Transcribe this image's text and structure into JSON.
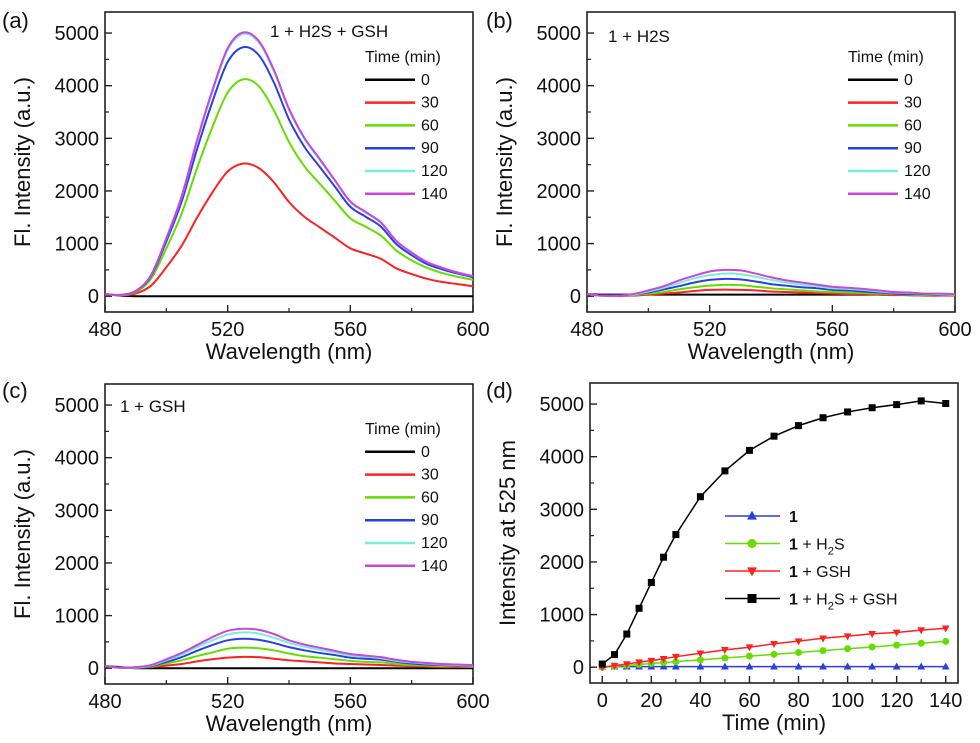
{
  "colors": {
    "0": "#000000",
    "30": "#ff2020",
    "60": "#66dd00",
    "90": "#2a3fe0",
    "120": "#77eedd",
    "140": "#cc44dd",
    "d_1": "#2a3fe0",
    "d_h2s": "#66dd00",
    "d_gsh": "#ff2020",
    "d_both": "#000000"
  },
  "chart_data": [
    {
      "panel": "(a)",
      "type": "line",
      "title": "1 + H2S + GSH",
      "xlabel": "Wavelength (nm)",
      "ylabel": "Fl. Intensity (a.u.)",
      "xlim": [
        480,
        600
      ],
      "ylim": [
        -300,
        5400
      ],
      "xticks": [
        480,
        520,
        560,
        600
      ],
      "yticks": [
        0,
        1000,
        2000,
        3000,
        4000,
        5000
      ],
      "legend_title": "Time (min)",
      "legend_position": "top-right",
      "grid": false,
      "x": [
        480,
        485,
        490,
        495,
        500,
        505,
        510,
        515,
        520,
        525,
        530,
        535,
        540,
        545,
        550,
        555,
        560,
        565,
        570,
        575,
        580,
        585,
        590,
        595,
        600
      ],
      "series": [
        {
          "name": "0",
          "values": [
            40,
            10,
            0,
            0,
            0,
            0,
            0,
            0,
            0,
            0,
            0,
            0,
            0,
            0,
            0,
            0,
            0,
            0,
            0,
            0,
            0,
            0,
            0,
            0,
            0
          ]
        },
        {
          "name": "30",
          "values": [
            40,
            15,
            50,
            200,
            550,
            960,
            1490,
            1970,
            2370,
            2520,
            2440,
            2170,
            1790,
            1510,
            1310,
            1110,
            910,
            810,
            710,
            530,
            420,
            330,
            270,
            230,
            190
          ]
        },
        {
          "name": "60",
          "values": [
            40,
            20,
            80,
            330,
            910,
            1570,
            2430,
            3210,
            3870,
            4120,
            4000,
            3540,
            2930,
            2470,
            2140,
            1810,
            1480,
            1320,
            1150,
            870,
            680,
            540,
            440,
            370,
            310
          ]
        },
        {
          "name": "90",
          "values": [
            40,
            24,
            95,
            380,
            1040,
            1800,
            2790,
            3690,
            4450,
            4730,
            4590,
            4070,
            3360,
            2840,
            2460,
            2080,
            1700,
            1510,
            1320,
            990,
            780,
            610,
            510,
            430,
            360
          ]
        },
        {
          "name": "120",
          "values": [
            40,
            25,
            100,
            400,
            1100,
            1890,
            2940,
            3880,
            4680,
            4980,
            4830,
            4280,
            3540,
            2990,
            2590,
            2190,
            1790,
            1590,
            1390,
            1050,
            820,
            650,
            540,
            450,
            380
          ]
        },
        {
          "name": "140",
          "values": [
            40,
            25,
            100,
            400,
            1100,
            1900,
            2960,
            3910,
            4710,
            5010,
            4860,
            4310,
            3560,
            3010,
            2610,
            2200,
            1800,
            1600,
            1400,
            1050,
            830,
            650,
            540,
            450,
            380
          ]
        }
      ]
    },
    {
      "panel": "(b)",
      "type": "line",
      "title": "1 + H2S",
      "xlabel": "Wavelength (nm)",
      "ylabel": "Fl. Intensity (a.u.)",
      "xlim": [
        480,
        600
      ],
      "ylim": [
        -300,
        5400
      ],
      "xticks": [
        480,
        520,
        560,
        600
      ],
      "yticks": [
        0,
        1000,
        2000,
        3000,
        4000,
        5000
      ],
      "legend_title": "Time (min)",
      "legend_position": "top-right",
      "grid": false,
      "x": [
        480,
        485,
        490,
        495,
        500,
        505,
        510,
        515,
        520,
        525,
        530,
        535,
        540,
        545,
        550,
        555,
        560,
        565,
        570,
        575,
        580,
        585,
        590,
        595,
        600
      ],
      "series": [
        {
          "name": "0",
          "values": [
            40,
            30,
            30,
            30,
            30,
            30,
            30,
            30,
            30,
            30,
            30,
            30,
            30,
            30,
            30,
            30,
            30,
            30,
            30,
            30,
            30,
            20,
            20,
            20,
            20
          ]
        },
        {
          "name": "30",
          "values": [
            40,
            10,
            5,
            10,
            30,
            50,
            70,
            100,
            120,
            125,
            120,
            110,
            90,
            80,
            70,
            60,
            50,
            40,
            40,
            30,
            20,
            20,
            10,
            10,
            10
          ]
        },
        {
          "name": "60",
          "values": [
            40,
            10,
            10,
            20,
            50,
            80,
            130,
            170,
            200,
            215,
            210,
            180,
            150,
            130,
            110,
            90,
            80,
            70,
            60,
            50,
            40,
            30,
            20,
            20,
            20
          ]
        },
        {
          "name": "90",
          "values": [
            40,
            10,
            10,
            30,
            70,
            130,
            190,
            260,
            310,
            330,
            320,
            280,
            230,
            200,
            170,
            150,
            120,
            110,
            90,
            70,
            50,
            40,
            40,
            30,
            30
          ]
        },
        {
          "name": "120",
          "values": [
            40,
            10,
            10,
            30,
            90,
            160,
            250,
            340,
            400,
            430,
            420,
            370,
            310,
            260,
            220,
            190,
            150,
            140,
            120,
            90,
            70,
            60,
            50,
            40,
            30
          ]
        },
        {
          "name": "140",
          "values": [
            40,
            10,
            10,
            40,
            110,
            190,
            300,
            390,
            470,
            500,
            490,
            430,
            360,
            300,
            260,
            220,
            180,
            160,
            140,
            110,
            80,
            70,
            50,
            50,
            40
          ]
        }
      ]
    },
    {
      "panel": "(c)",
      "type": "line",
      "title": "1 + GSH",
      "xlabel": "Wavelength (nm)",
      "ylabel": "Fl. Intensity (a.u.)",
      "xlim": [
        480,
        600
      ],
      "ylim": [
        -300,
        5400
      ],
      "xticks": [
        480,
        520,
        560,
        600
      ],
      "yticks": [
        0,
        1000,
        2000,
        3000,
        4000,
        5000
      ],
      "legend_title": "Time (min)",
      "legend_position": "top-right",
      "grid": false,
      "x": [
        480,
        485,
        490,
        495,
        500,
        505,
        510,
        515,
        520,
        525,
        530,
        535,
        540,
        545,
        550,
        555,
        560,
        565,
        570,
        575,
        580,
        585,
        590,
        595,
        600
      ],
      "series": [
        {
          "name": "0",
          "values": [
            40,
            20,
            0,
            0,
            0,
            0,
            0,
            0,
            0,
            0,
            0,
            0,
            0,
            0,
            0,
            0,
            0,
            0,
            0,
            0,
            0,
            0,
            0,
            0,
            0
          ]
        },
        {
          "name": "30",
          "values": [
            40,
            10,
            5,
            20,
            50,
            80,
            130,
            170,
            200,
            215,
            210,
            180,
            150,
            130,
            110,
            90,
            80,
            70,
            60,
            50,
            40,
            30,
            20,
            20,
            20
          ]
        },
        {
          "name": "60",
          "values": [
            40,
            10,
            10,
            30,
            90,
            150,
            230,
            300,
            370,
            390,
            380,
            340,
            280,
            230,
            200,
            170,
            140,
            120,
            110,
            80,
            60,
            50,
            40,
            40,
            30
          ]
        },
        {
          "name": "90",
          "values": [
            40,
            10,
            10,
            40,
            120,
            210,
            330,
            440,
            530,
            560,
            540,
            480,
            400,
            340,
            290,
            250,
            200,
            180,
            160,
            120,
            90,
            70,
            60,
            50,
            40
          ]
        },
        {
          "name": "120",
          "values": [
            40,
            10,
            10,
            50,
            150,
            260,
            400,
            530,
            640,
            680,
            660,
            580,
            480,
            410,
            350,
            300,
            240,
            220,
            190,
            140,
            110,
            90,
            70,
            60,
            50
          ]
        },
        {
          "name": "140",
          "values": [
            40,
            10,
            20,
            60,
            170,
            290,
            440,
            590,
            710,
            750,
            730,
            650,
            530,
            450,
            390,
            330,
            270,
            240,
            210,
            160,
            120,
            100,
            80,
            70,
            60
          ]
        }
      ]
    },
    {
      "panel": "(d)",
      "type": "line",
      "xlabel": "Time (min)",
      "ylabel": "Intensity at 525 nm",
      "xlim": [
        -5,
        145
      ],
      "ylim": [
        -300,
        5400
      ],
      "xticks": [
        0,
        20,
        40,
        60,
        80,
        100,
        120,
        140
      ],
      "yticks": [
        0,
        1000,
        2000,
        3000,
        4000,
        5000
      ],
      "legend_position": "center-right",
      "grid": false,
      "x": [
        0,
        5,
        10,
        15,
        20,
        25,
        30,
        40,
        50,
        60,
        70,
        80,
        90,
        100,
        110,
        120,
        130,
        140
      ],
      "series": [
        {
          "name": "1",
          "marker": "triangle-up",
          "color_key": "d_1",
          "values": [
            10,
            10,
            10,
            10,
            10,
            10,
            10,
            10,
            10,
            10,
            10,
            10,
            10,
            10,
            10,
            10,
            10,
            10
          ]
        },
        {
          "name": "1 + H2S",
          "marker": "circle",
          "color_key": "d_h2s",
          "values": [
            0,
            18,
            35,
            52,
            70,
            88,
            105,
            140,
            175,
            210,
            245,
            280,
            315,
            350,
            385,
            420,
            455,
            490
          ]
        },
        {
          "name": "1 + GSH",
          "marker": "triangle-down",
          "color_key": "d_gsh",
          "values": [
            0,
            30,
            60,
            95,
            125,
            160,
            200,
            265,
            330,
            380,
            445,
            495,
            550,
            590,
            635,
            660,
            705,
            740
          ]
        },
        {
          "name": "1 + H2S + GSH",
          "marker": "square",
          "color_key": "d_both",
          "values": [
            60,
            240,
            630,
            1120,
            1610,
            2090,
            2520,
            3240,
            3730,
            4120,
            4390,
            4590,
            4740,
            4850,
            4930,
            4990,
            5060,
            5010
          ]
        }
      ]
    }
  ]
}
